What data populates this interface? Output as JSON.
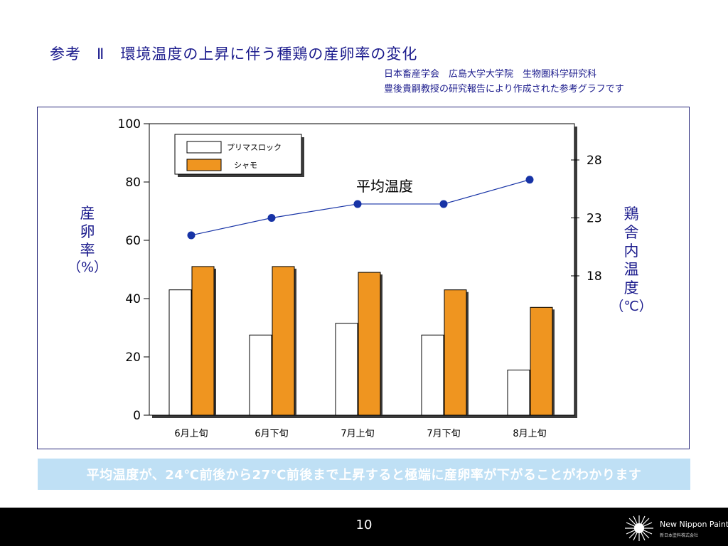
{
  "slide": {
    "title": "参考　Ⅱ　環境温度の上昇に伴う種鶏の産卵率の変化",
    "source_line1": "日本畜産学会　広島大学大学院　生物圏科学研究科",
    "source_line2": "豊後貴嗣教授の研究報告により作成された参考グラフです",
    "note": "平均温度が、24℃前後から27℃前後まで上昇すると極端に産卵率が下がることがわかります",
    "page_number": "10",
    "brand_name": "New Nippon Paint",
    "brand_sub": "新日本塗料株式会社"
  },
  "colors": {
    "title_text": "#1a1a8c",
    "series_primus": "#ffffff",
    "series_shamo": "#ef9520",
    "temperature_line": "#1733a6",
    "note_banner": "#bfe0f5"
  },
  "chart_data": {
    "type": "bar",
    "categories": [
      "6月上旬",
      "6月下旬",
      "7月上旬",
      "7月下旬",
      "8月上旬"
    ],
    "series": [
      {
        "name": "プリマスロック",
        "values": [
          43,
          27.5,
          31.5,
          27.5,
          15.5
        ]
      },
      {
        "name": "シャモ",
        "values": [
          51,
          51,
          49,
          43,
          37
        ]
      }
    ],
    "ylabel": "産卵率（%）",
    "ylim": [
      0,
      100
    ],
    "yticks": [
      0,
      20,
      40,
      60,
      80,
      100
    ],
    "line_series": {
      "name": "平均温度",
      "axis": "right",
      "values": [
        21.5,
        23,
        24.2,
        24.2,
        26.3
      ]
    },
    "y2label": "鶏舎内温度（℃）",
    "y2ticks": [
      18,
      23,
      28
    ],
    "grid": false,
    "legend": "top-left"
  }
}
